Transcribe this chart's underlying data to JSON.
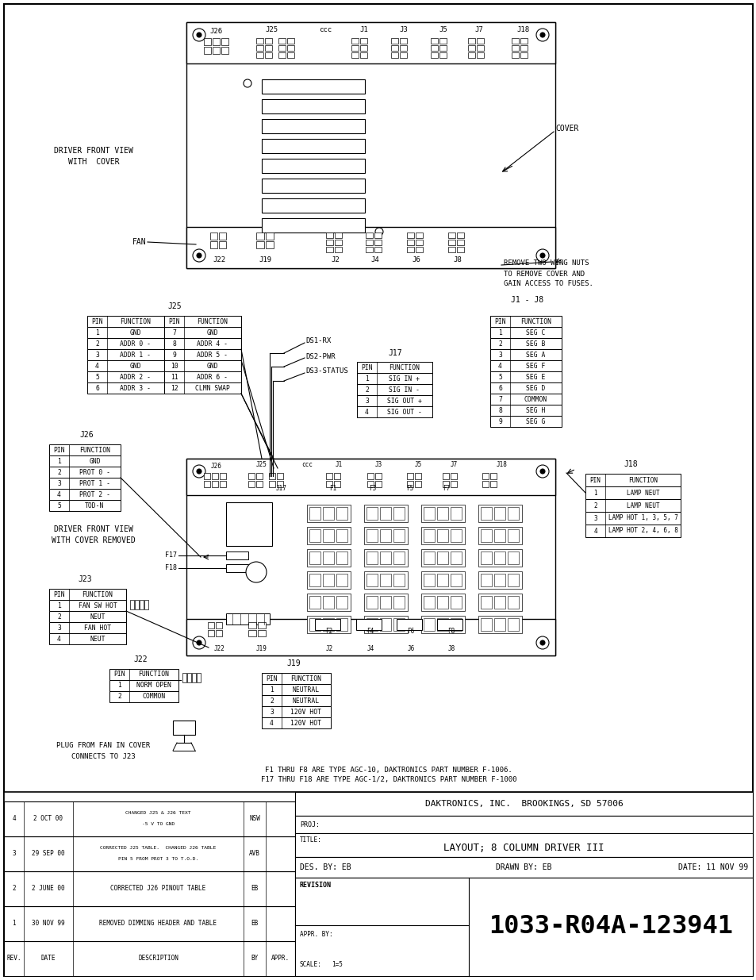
{
  "bg_color": "#ffffff",
  "line_color": "#000000",
  "text_color": "#000000",
  "title": "LAYOUT; 8 COLUMN DRIVER III",
  "drawing_number": "1033-R04A-123941",
  "company": "DAKTRONICS, INC.  BROOKINGS, SD 57006",
  "des_by": "EB",
  "drawn_by": "EB",
  "date": "11 NOV 99",
  "scale": "1=5",
  "revisions": [
    {
      "rev": "4",
      "date": "2 OCT 00",
      "desc": "CHANGED J25 & J26 TEXT\n-5 V TO GND",
      "by": "NSW",
      "appr": ""
    },
    {
      "rev": "3",
      "date": "29 SEP 00",
      "desc": "CORRECTED J25 TABLE.  CHANGED J26 TABLE\nPIN 5 FROM PROT 3 TO T.O.D.",
      "by": "AVB",
      "appr": ""
    },
    {
      "rev": "2",
      "date": "2 JUNE 00",
      "desc": "CORRECTED J26 PINOUT TABLE",
      "by": "EB",
      "appr": ""
    },
    {
      "rev": "1",
      "date": "30 NOV 99",
      "desc": "REMOVED DIMMING HEADER AND TABLE",
      "by": "EB",
      "appr": ""
    }
  ],
  "notes_bottom": [
    "F1 THRU F8 ARE TYPE AGC-10, DAKTRONICS PART NUMBER F-1006.",
    "F17 THRU F18 ARE TYPE AGC-1/2, DAKTRONICS PART NUMBER F-1000"
  ],
  "j25_left_rows": [
    [
      "1",
      "GND"
    ],
    [
      "2",
      "ADDR 0 -"
    ],
    [
      "3",
      "ADDR 1 -"
    ],
    [
      "4",
      "GND"
    ],
    [
      "5",
      "ADDR 2 -"
    ],
    [
      "6",
      "ADDR 3 -"
    ]
  ],
  "j25_right_rows": [
    [
      "7",
      "GND"
    ],
    [
      "8",
      "ADDR 4 -"
    ],
    [
      "9",
      "ADDR 5 -"
    ],
    [
      "10",
      "GND"
    ],
    [
      "11",
      "ADDR 6 -"
    ],
    [
      "12",
      "CLMN SWAP"
    ]
  ],
  "j1j8_rows": [
    [
      "1",
      "SEG C"
    ],
    [
      "2",
      "SEG B"
    ],
    [
      "3",
      "SEG A"
    ],
    [
      "4",
      "SEG F"
    ],
    [
      "5",
      "SEG E"
    ],
    [
      "6",
      "SEG D"
    ],
    [
      "7",
      "COMMON"
    ],
    [
      "8",
      "SEG H"
    ],
    [
      "9",
      "SEG G"
    ]
  ],
  "j17_rows": [
    [
      "1",
      "SIG IN +"
    ],
    [
      "2",
      "SIG IN -"
    ],
    [
      "3",
      "SIG OUT +"
    ],
    [
      "4",
      "SIG OUT -"
    ]
  ],
  "j26_rows": [
    [
      "1",
      "GND"
    ],
    [
      "2",
      "PROT 0 -"
    ],
    [
      "3",
      "PROT 1 -"
    ],
    [
      "4",
      "PROT 2 -"
    ],
    [
      "5",
      "TOD-N"
    ]
  ],
  "j18_rows": [
    [
      "1",
      "LAMP NEUT"
    ],
    [
      "2",
      "LAMP NEUT"
    ],
    [
      "3",
      "LAMP HOT 1, 3, 5, 7"
    ],
    [
      "4",
      "LAMP HOT 2, 4, 6, 8"
    ]
  ],
  "j23_rows": [
    [
      "1",
      "FAN SW HOT"
    ],
    [
      "2",
      "NEUT"
    ],
    [
      "3",
      "FAN HOT"
    ],
    [
      "4",
      "NEUT"
    ]
  ],
  "j22_rows": [
    [
      "1",
      "NORM OPEN"
    ],
    [
      "2",
      "COMMON"
    ]
  ],
  "j19_rows": [
    [
      "1",
      "NEUTRAL"
    ],
    [
      "2",
      "NEUTRAL"
    ],
    [
      "3",
      "120V HOT"
    ],
    [
      "4",
      "120V HOT"
    ]
  ]
}
